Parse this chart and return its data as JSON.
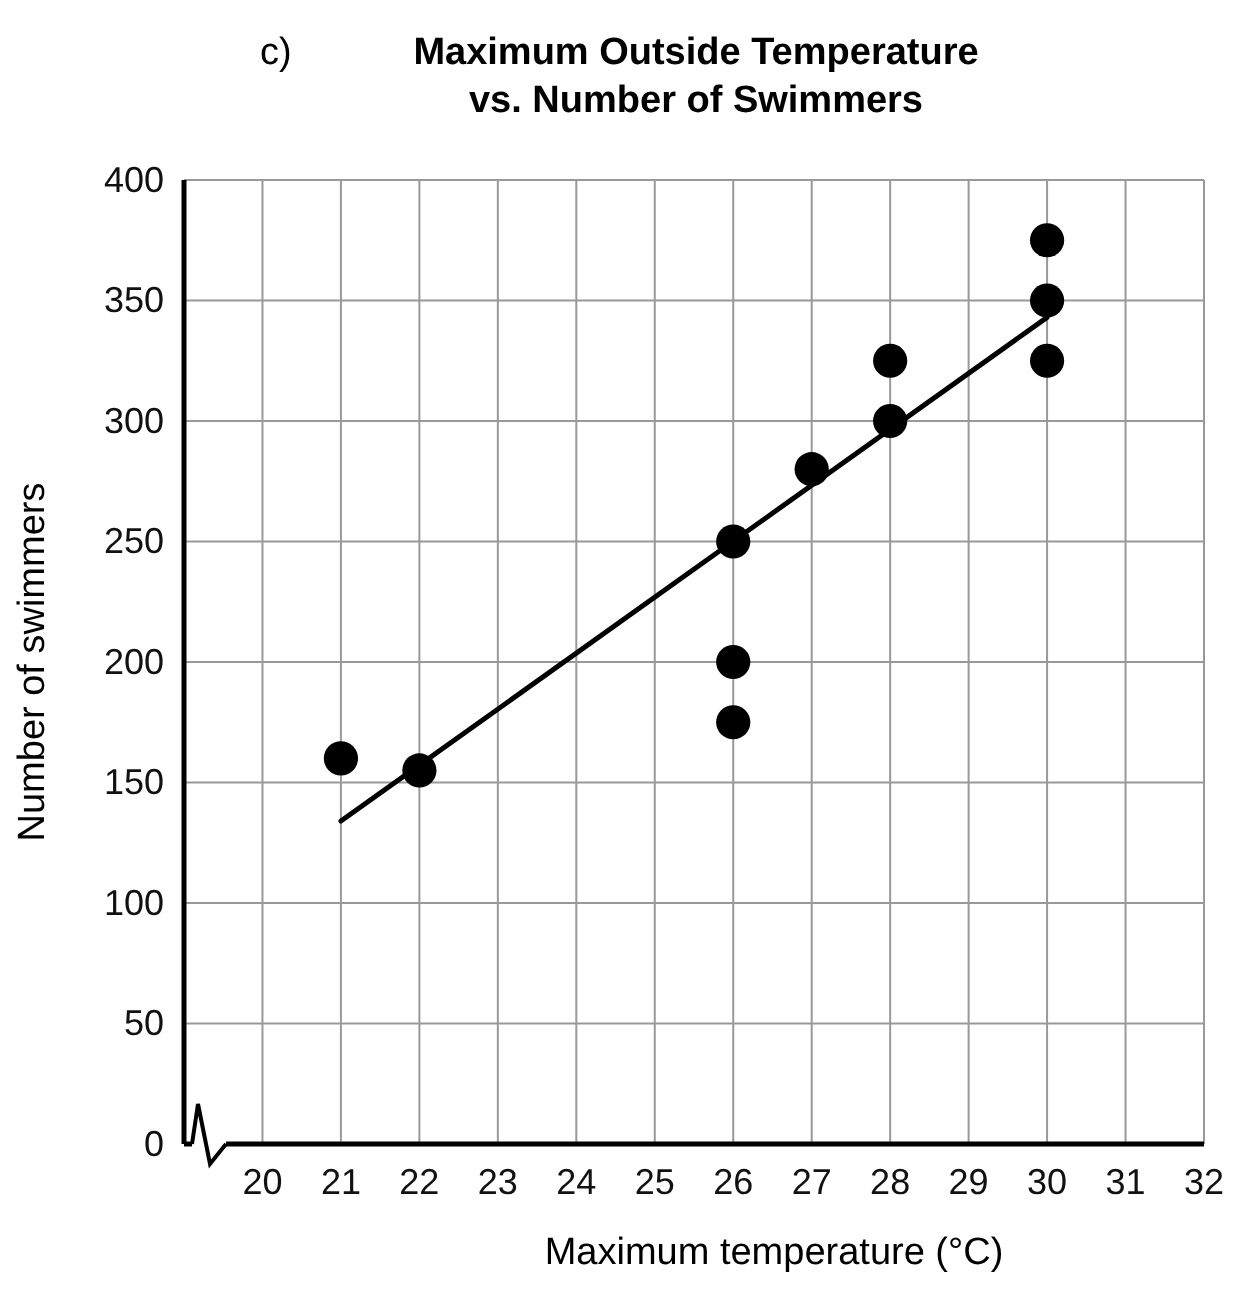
{
  "chart_data": {
    "type": "scatter",
    "title": "Maximum Outside Temperature\nvs. Number of Swimmers",
    "xlabel": "Maximum temperature (°C)",
    "ylabel": "Number of swimmers",
    "annotations": [
      "c)"
    ],
    "series": [
      {
        "color": "#000000",
        "x": [
          21,
          22,
          26,
          26,
          26,
          27,
          28,
          28,
          30,
          30,
          30
        ],
        "values": [
          160,
          155,
          250,
          200,
          175,
          280,
          325,
          300,
          375,
          350,
          325
        ],
        "marker": "circle"
      },
      {
        "type": "line",
        "color": "#000000",
        "x": [
          21,
          30
        ],
        "values": [
          134,
          343
        ],
        "marker": "none",
        "line_style": "solid"
      }
    ],
    "xlim": [
      19,
      32
    ],
    "xticks": [
      20,
      21,
      22,
      23,
      24,
      25,
      26,
      27,
      28,
      29,
      30,
      31,
      32
    ],
    "ylim": [
      0,
      400
    ],
    "yticks": [
      0,
      50,
      100,
      150,
      200,
      250,
      300,
      350,
      400
    ],
    "grid": true
  }
}
